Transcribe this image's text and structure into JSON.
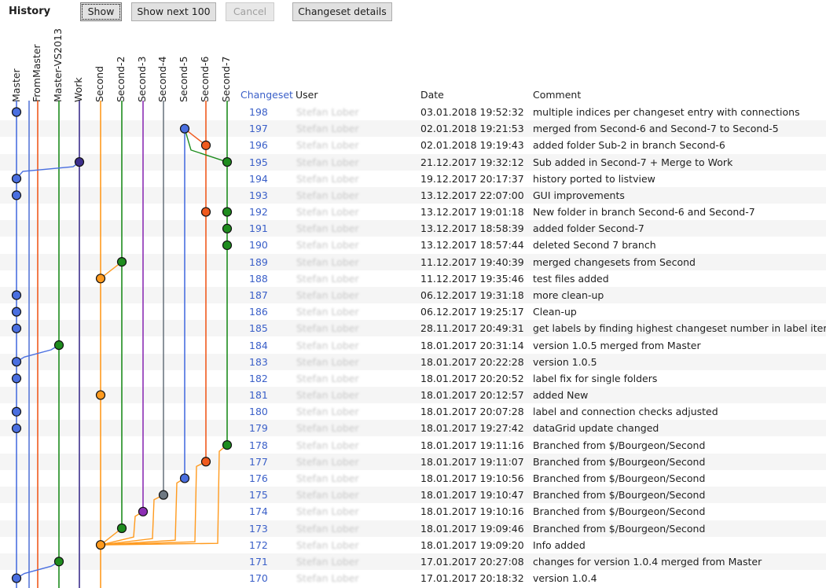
{
  "toolbar": {
    "title": "History",
    "show_label": "Show",
    "show_next_label": "Show next 100",
    "cancel_label": "Cancel",
    "details_label": "Changeset details"
  },
  "branches": [
    "Master",
    "FromMaster",
    "Master-VS2013",
    "Work",
    "Second",
    "Second-2",
    "Second-3",
    "Second-4",
    "Second-5",
    "Second-6",
    "Second-7"
  ],
  "branch_colors": [
    "#4a6fe0",
    "#4a6fe0",
    "#f05a1e",
    "#1e8c1e",
    "#3c2e8c",
    "#ff9a1e",
    "#1e8c1e",
    "#8c2eb4",
    "#6e7882",
    "#4a6fe0",
    "#f05a1e",
    "#1e8c1e"
  ],
  "columns": {
    "changeset": "Changeset",
    "user": "User",
    "date": "Date",
    "comment": "Comment"
  },
  "rows": [
    {
      "cs": "198",
      "user": "Stefan Lober",
      "date": "03.01.2018 19:52:32",
      "comment": "multiple indices per changeset entry with connections"
    },
    {
      "cs": "197",
      "user": "Stefan Lober",
      "date": "02.01.2018 19:21:53",
      "comment": "merged from Second-6 and Second-7 to Second-5"
    },
    {
      "cs": "196",
      "user": "Stefan Lober",
      "date": "02.01.2018 19:19:43",
      "comment": "added folder Sub-2 in branch Second-6"
    },
    {
      "cs": "195",
      "user": "Stefan Lober",
      "date": "21.12.2017 19:32:12",
      "comment": "Sub added in Second-7 + Merge to Work"
    },
    {
      "cs": "194",
      "user": "Stefan Lober",
      "date": "19.12.2017 20:17:37",
      "comment": "history ported to listview"
    },
    {
      "cs": "193",
      "user": "Stefan Lober",
      "date": "13.12.2017 22:07:00",
      "comment": "GUI improvements"
    },
    {
      "cs": "192",
      "user": "Stefan Lober",
      "date": "13.12.2017 19:01:18",
      "comment": "New folder in branch Second-6 and Second-7"
    },
    {
      "cs": "191",
      "user": "Stefan Lober",
      "date": "13.12.2017 18:58:39",
      "comment": "added folder Second-7"
    },
    {
      "cs": "190",
      "user": "Stefan Lober",
      "date": "13.12.2017 18:57:44",
      "comment": "deleted Second 7 branch"
    },
    {
      "cs": "189",
      "user": "Stefan Lober",
      "date": "11.12.2017 19:40:39",
      "comment": "merged changesets from Second"
    },
    {
      "cs": "188",
      "user": "Stefan Lober",
      "date": "11.12.2017 19:35:46",
      "comment": "test files added"
    },
    {
      "cs": "187",
      "user": "Stefan Lober",
      "date": "06.12.2017 19:31:18",
      "comment": "more clean-up"
    },
    {
      "cs": "186",
      "user": "Stefan Lober",
      "date": "06.12.2017 19:25:17",
      "comment": "Clean-up"
    },
    {
      "cs": "185",
      "user": "Stefan Lober",
      "date": "28.11.2017 20:49:31",
      "comment": "get labels by finding highest changeset number in label items"
    },
    {
      "cs": "184",
      "user": "Stefan Lober",
      "date": "18.01.2017 20:31:14",
      "comment": "version 1.0.5 merged from Master"
    },
    {
      "cs": "183",
      "user": "Stefan Lober",
      "date": "18.01.2017 20:22:28",
      "comment": "version 1.0.5"
    },
    {
      "cs": "182",
      "user": "Stefan Lober",
      "date": "18.01.2017 20:20:52",
      "comment": "label fix for single folders"
    },
    {
      "cs": "181",
      "user": "Stefan Lober",
      "date": "18.01.2017 20:12:57",
      "comment": "added New"
    },
    {
      "cs": "180",
      "user": "Stefan Lober",
      "date": "18.01.2017 20:07:28",
      "comment": "label and connection checks adjusted"
    },
    {
      "cs": "179",
      "user": "Stefan Lober",
      "date": "18.01.2017 19:27:42",
      "comment": "dataGrid update changed"
    },
    {
      "cs": "178",
      "user": "Stefan Lober",
      "date": "18.01.2017 19:11:16",
      "comment": "Branched from $/Bourgeon/Second"
    },
    {
      "cs": "177",
      "user": "Stefan Lober",
      "date": "18.01.2017 19:11:07",
      "comment": "Branched from $/Bourgeon/Second"
    },
    {
      "cs": "176",
      "user": "Stefan Lober",
      "date": "18.01.2017 19:10:56",
      "comment": "Branched from $/Bourgeon/Second"
    },
    {
      "cs": "175",
      "user": "Stefan Lober",
      "date": "18.01.2017 19:10:47",
      "comment": "Branched from $/Bourgeon/Second"
    },
    {
      "cs": "174",
      "user": "Stefan Lober",
      "date": "18.01.2017 19:10:16",
      "comment": "Branched from $/Bourgeon/Second"
    },
    {
      "cs": "173",
      "user": "Stefan Lober",
      "date": "18.01.2017 19:09:46",
      "comment": "Branched from $/Bourgeon/Second"
    },
    {
      "cs": "172",
      "user": "Stefan Lober",
      "date": "18.01.2017 19:09:20",
      "comment": "Info added"
    },
    {
      "cs": "171",
      "user": "Stefan Lober",
      "date": "17.01.2017 20:27:08",
      "comment": "changes for version 1.0.4 merged from Master"
    },
    {
      "cs": "170",
      "user": "Stefan Lober",
      "date": "17.01.2017 20:18:32",
      "comment": "version 1.0.4"
    }
  ]
}
